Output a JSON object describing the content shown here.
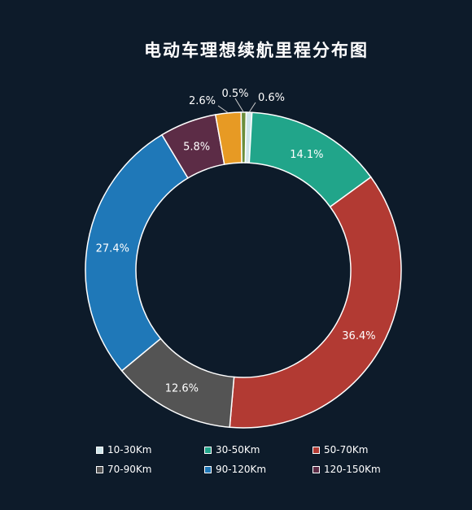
{
  "chart_data": {
    "type": "pie",
    "donut": true,
    "title": "电动车理想续航里程分布图",
    "categories": [
      "10-30Km",
      "30-50Km",
      "50-70Km",
      "70-90Km",
      "90-120Km",
      "120-150Km",
      "",
      ""
    ],
    "values": [
      0.6,
      14.1,
      36.4,
      12.6,
      27.4,
      5.8,
      2.6,
      0.5
    ],
    "labels": [
      "0.6%",
      "14.1%",
      "36.4%",
      "12.6%",
      "27.4%",
      "5.8%",
      "2.6%",
      "0.5%"
    ],
    "colors": [
      "#cfe6ea",
      "#21a58a",
      "#b23a33",
      "#545454",
      "#1f78b8",
      "#5c2c46",
      "#e79a24",
      "#6b8e3c"
    ],
    "legend": [
      {
        "label": "10-30Km",
        "color": "#cfe6ea"
      },
      {
        "label": "30-50Km",
        "color": "#21a58a"
      },
      {
        "label": "50-70Km",
        "color": "#b23a33"
      },
      {
        "label": "70-90Km",
        "color": "#545454"
      },
      {
        "label": "90-120Km",
        "color": "#1f78b8"
      },
      {
        "label": "120-150Km",
        "color": "#5c2c46"
      }
    ],
    "legend_position": "bottom"
  }
}
